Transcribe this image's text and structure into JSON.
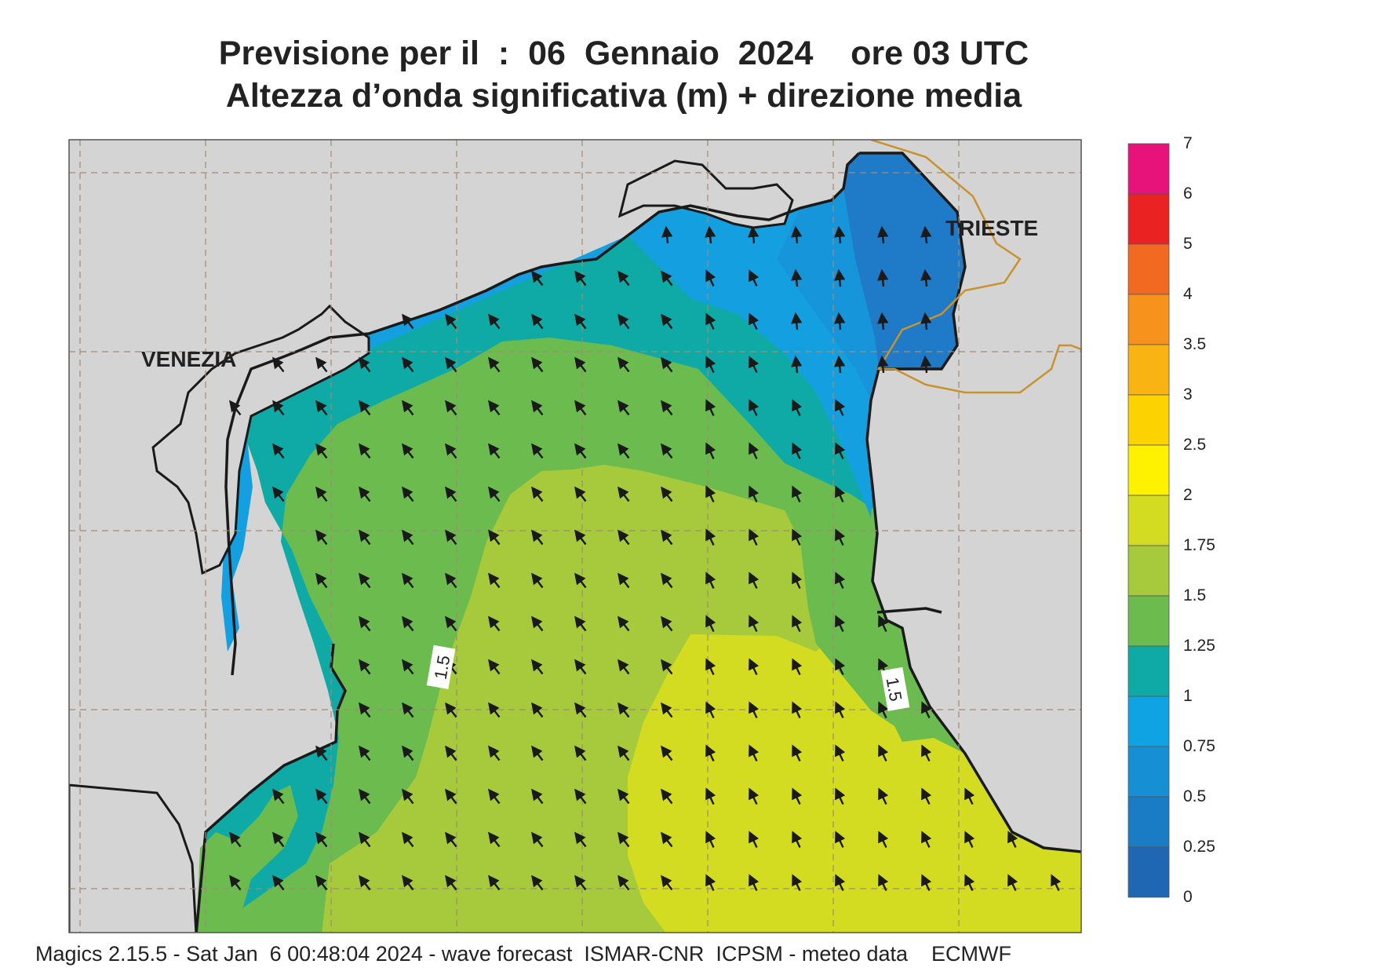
{
  "title": {
    "line1": "Previsione per il  :  06  Gennaio  2024    ore 03 UTC",
    "line2": "Altezza d’onda significativa (m) + direzione media"
  },
  "map": {
    "place_labels": {
      "venezia": "VENEZIA",
      "trieste": "TRIESTE"
    },
    "contour_labels": [
      "1.5",
      "1.5"
    ],
    "land_color": "#d4d4d4",
    "coast_color": "#1a1a1a",
    "border_color": "#c8922e",
    "grid_color": "#a08c74",
    "arrow_direction": "north-west",
    "zones": [
      {
        "range": "0.25-0.5",
        "color": "#1f7bc7"
      },
      {
        "range": "0.5-0.75",
        "color": "#1695db"
      },
      {
        "range": "0.75-1",
        "color": "#14a0e0"
      },
      {
        "range": "1-1.25",
        "color": "#10aaa6"
      },
      {
        "range": "1.25-1.5",
        "color": "#6bbb4f"
      },
      {
        "range": "1.5-1.75",
        "color": "#a7c93c"
      },
      {
        "range": "1.75-2",
        "color": "#d4dc22"
      }
    ]
  },
  "colorbar": {
    "labels": [
      "7",
      "6",
      "5",
      "4",
      "3.5",
      "3",
      "2.5",
      "2",
      "1.75",
      "1.5",
      "1.25",
      "1",
      "0.75",
      "0.5",
      "0.25",
      "0"
    ],
    "colors": [
      "#e8137a",
      "#ea2222",
      "#f26a21",
      "#f7921c",
      "#f9b313",
      "#fcd200",
      "#fff200",
      "#d4dc22",
      "#a7c93c",
      "#6bbb4f",
      "#10aaa6",
      "#10a3e3",
      "#168fd4",
      "#1a7cc4",
      "#1f66b3"
    ]
  },
  "footer": "Magics 2.15.5 - Sat Jan  6 00:48:04 2024 - wave forecast  ISMAR-CNR  ICPSM - meteo data    ECMWF"
}
